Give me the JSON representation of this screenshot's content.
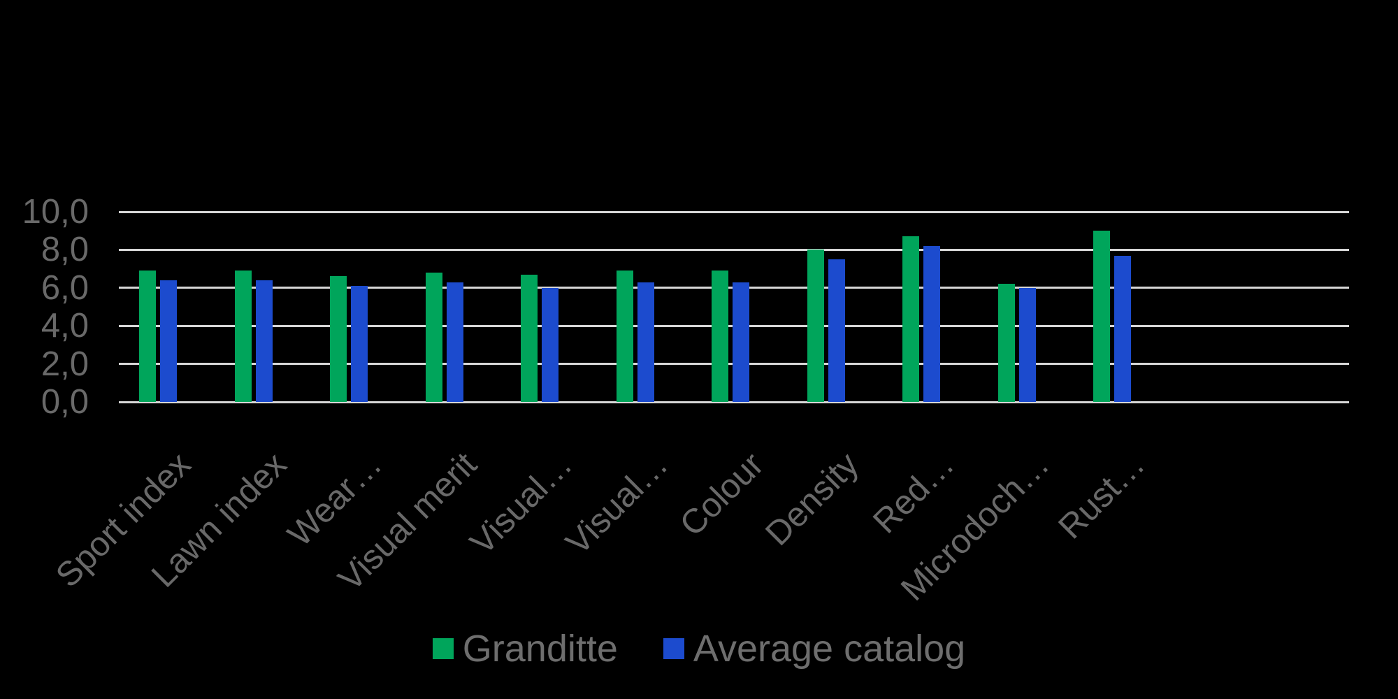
{
  "chart_data": {
    "type": "bar",
    "title": "",
    "xlabel": "",
    "ylabel": "",
    "categories": [
      "Sport index",
      "Lawn index",
      "Wear…",
      "Visual merit",
      "Visual…",
      "Visual…",
      "Colour",
      "Density",
      "Red…",
      "Microdoch…",
      "Rust…"
    ],
    "series": [
      {
        "name": "Granditte",
        "color": "#00A55B",
        "values": [
          6.9,
          6.9,
          6.6,
          6.8,
          6.7,
          6.9,
          6.9,
          8.0,
          8.7,
          6.2,
          9.0
        ]
      },
      {
        "name": "Average catalog",
        "color": "#1C4BCE",
        "values": [
          6.4,
          6.4,
          6.1,
          6.3,
          6.0,
          6.3,
          6.3,
          7.5,
          8.2,
          6.0,
          7.7
        ]
      }
    ],
    "ylim": [
      0,
      10
    ],
    "ytick_step": 2,
    "ytick_labels": [
      "0,0",
      "2,0",
      "4,0",
      "6,0",
      "8,0",
      "10,0"
    ],
    "grid": true,
    "legend_position": "bottom",
    "colors": {
      "background": "#000000",
      "gridline": "#D7D7D7",
      "axis_text": "#696969",
      "legend_text": "#6E6E6E"
    }
  }
}
